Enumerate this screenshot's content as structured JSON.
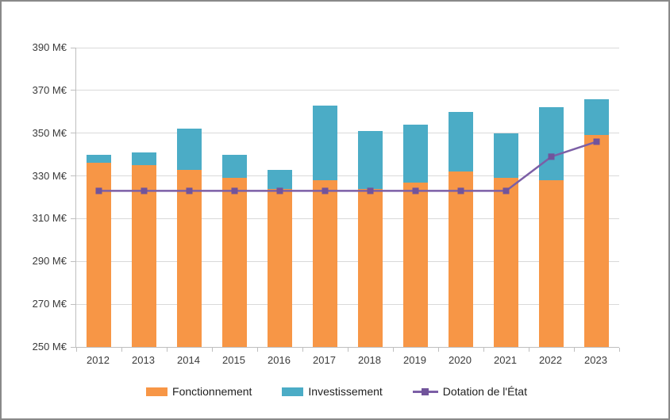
{
  "figure": {
    "background": "#ffffff",
    "border_color": "#898989",
    "gridline_color": "#d9d9d9",
    "axis_line_color": "#bfbfbf",
    "tick_text_color": "#3b3b3b"
  },
  "chart_data": {
    "type": "bar",
    "stacked": true,
    "title": "",
    "xlabel": "",
    "ylabel": "",
    "categories": [
      "2012",
      "2013",
      "2014",
      "2015",
      "2016",
      "2017",
      "2018",
      "2019",
      "2020",
      "2021",
      "2022",
      "2023"
    ],
    "series": [
      {
        "name": "Fonctionnement",
        "kind": "bar",
        "color": "#F79646",
        "values": [
          336,
          335,
          333,
          329,
          324,
          328,
          324,
          327,
          332,
          329,
          328,
          349
        ]
      },
      {
        "name": "Investissement",
        "kind": "bar",
        "color": "#4BACC6",
        "values": [
          4,
          6,
          19,
          11,
          9,
          35,
          27,
          27,
          28,
          21,
          34,
          17
        ]
      },
      {
        "name": "Dotation de l'État",
        "kind": "line",
        "color": "#7C5FA6",
        "marker": "square",
        "marker_color": "#71549B",
        "values": [
          323,
          323,
          323,
          323,
          323,
          323,
          323,
          323,
          323,
          323,
          339,
          346
        ]
      }
    ],
    "stacked_totals": [
      340,
      341,
      352,
      340,
      333,
      363,
      351,
      354,
      360,
      350,
      362,
      366
    ],
    "ylim": [
      250,
      390
    ],
    "ytick_step": 20,
    "ytick_labels": [
      "250 M€",
      "270 M€",
      "290 M€",
      "310 M€",
      "330 M€",
      "350 M€",
      "370 M€",
      "390 M€"
    ],
    "unit_suffix": " M€",
    "grid": true,
    "legend_position": "bottom"
  }
}
